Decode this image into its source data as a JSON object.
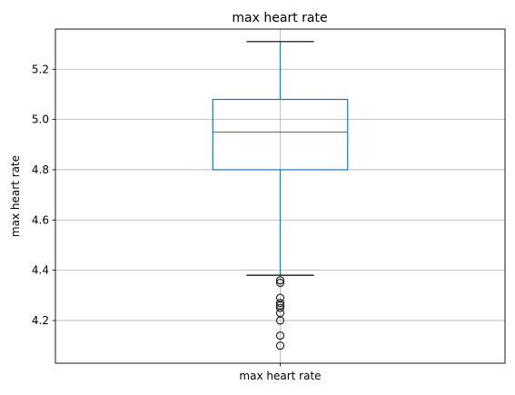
{
  "chart_data": {
    "type": "box",
    "title": "max heart rate",
    "xlabel": "",
    "ylabel": "max heart rate",
    "categories": [
      "max heart rate"
    ],
    "ylim": [
      4.03,
      5.36
    ],
    "yticks": [
      "4.2",
      "4.4",
      "4.6",
      "4.8",
      "5.0",
      "5.2"
    ],
    "grid": true,
    "series": [
      {
        "category": "max heart rate",
        "whisker_low": 4.38,
        "q1": 4.8,
        "median": 4.95,
        "q3": 5.08,
        "whisker_high": 5.31,
        "outliers": [
          4.36,
          4.35,
          4.29,
          4.27,
          4.26,
          4.25,
          4.23,
          4.2,
          4.14,
          4.1
        ]
      }
    ],
    "colors": {
      "box": "#1f77b4",
      "median": "#2ca02c",
      "whisker": "#1f77b4",
      "cap": "#000000",
      "flier": "#000000",
      "grid": "#b0b0b0"
    }
  }
}
